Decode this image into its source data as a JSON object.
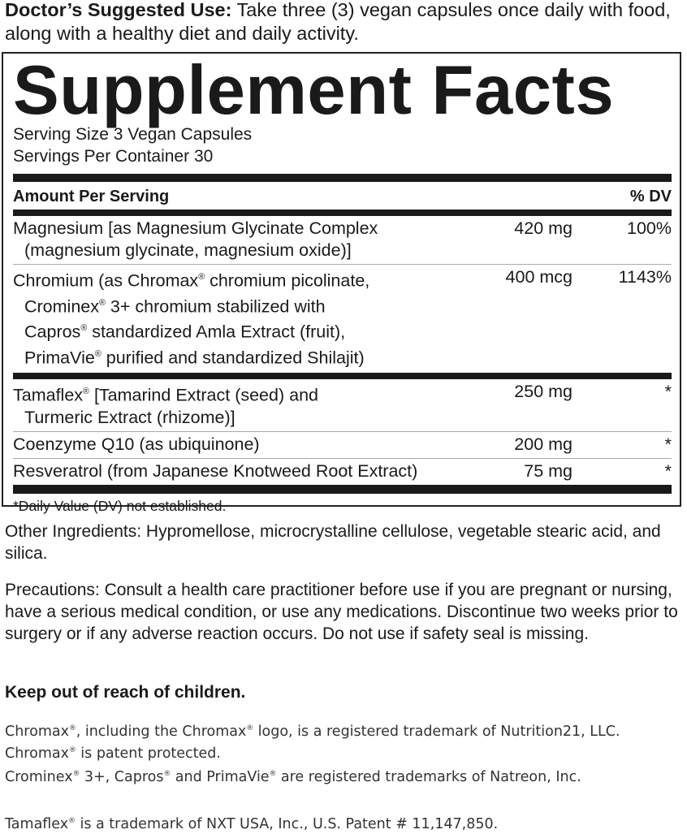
{
  "directions": {
    "label": "Doctor’s Suggested Use:",
    "text": " Take three (3) vegan capsules once daily with food, along with a healthy diet and daily activity."
  },
  "facts": {
    "title": "Supplement Facts",
    "serving_size": "Serving Size 3 Vegan Capsules",
    "servings_per_container": "Servings Per Container 30",
    "header_amount": "Amount Per Serving",
    "header_dv": "% DV",
    "rows": [
      {
        "lines": [
          "Magnesium [as Magnesium Glycinate Complex",
          "(magnesium glycinate, magnesium oxide)]"
        ],
        "amount": "420 mg",
        "dv": "100%"
      },
      {
        "lines": [
          "Chromium (as Chromax® chromium picolinate,",
          "Crominex® 3+ chromium stabilized with",
          "Capros® standardized Amla Extract (fruit),",
          "PrimaVie® purified and standardized Shilajit)"
        ],
        "amount": "400 mcg",
        "dv": "1143%"
      },
      {
        "lines": [
          "Tamaflex® [Tamarind Extract (seed) and",
          "Turmeric Extract (rhizome)]"
        ],
        "amount": "250 mg",
        "dv": "*"
      },
      {
        "lines": [
          "Coenzyme Q10 (as ubiquinone)"
        ],
        "amount": "200 mg",
        "dv": "*"
      },
      {
        "lines": [
          "Resveratrol (from Japanese Knotweed Root Extract)"
        ],
        "amount": "75 mg",
        "dv": "*"
      }
    ],
    "footnote": "*Daily Value (DV) not established."
  },
  "other_ingredients": "Other Ingredients: Hypromellose, microcrystalline cellulose, vegetable stearic acid, and silica.",
  "precautions": "Precautions: Consult a health care practitioner before use if you are pregnant or nursing, have a serious medical condition, or use any medications. Discontinue two weeks prior to surgery or if any adverse reaction occurs. Do not use if safety seal is missing.",
  "warning": "Keep out of reach of children.",
  "trademarks": [
    "Chromax®, including the Chromax® logo, is a registered trademark of Nutrition21, LLC. Chromax® is patent protected.",
    "Crominex® 3+, Capros® and PrimaVie® are registered trademarks of Natreon, Inc.",
    "Tamaflex® is a trademark of NXT USA, Inc., U.S. Patent # 11,147,850."
  ]
}
